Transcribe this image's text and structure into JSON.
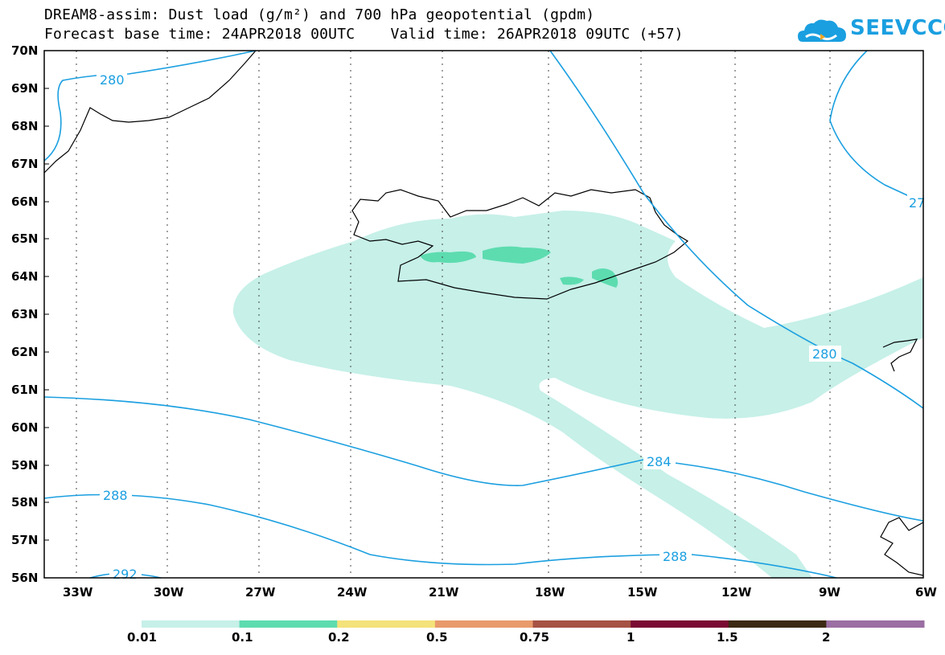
{
  "title_line1": "DREAM8-assim: Dust load (g/m²) and 700 hPa geopotential (gpdm)",
  "title_line2": "Forecast base time: 24APR2018 00UTC    Valid time: 26APR2018 09UTC (+57)",
  "logo_text": "SEEVCCC",
  "latitude_labels": [
    "70N",
    "69N",
    "68N",
    "67N",
    "66N",
    "65N",
    "64N",
    "63N",
    "62N",
    "61N",
    "60N",
    "59N",
    "58N",
    "57N",
    "56N"
  ],
  "longitude_labels": [
    "33W",
    "30W",
    "27W",
    "24W",
    "21W",
    "18W",
    "15W",
    "12W",
    "9W",
    "6W"
  ],
  "contour_labels": [
    "280",
    "280",
    "27",
    "284",
    "288",
    "288",
    "292"
  ],
  "colorbar": {
    "tick_labels": [
      "0.01",
      "0.1",
      "0.2",
      "0.5",
      "0.75",
      "1",
      "1.5",
      "2"
    ],
    "colors": [
      "#c6f0e8",
      "#5ddcb0",
      "#f4e27a",
      "#e99a6b",
      "#a65244",
      "#7a0a33",
      "#3d2a14",
      "#9b6fa3"
    ]
  },
  "colors": {
    "dust_low": "#c6f0e8",
    "dust_mid": "#5ddcb0",
    "contour": "#1a9fe0",
    "coast": "#000000"
  }
}
